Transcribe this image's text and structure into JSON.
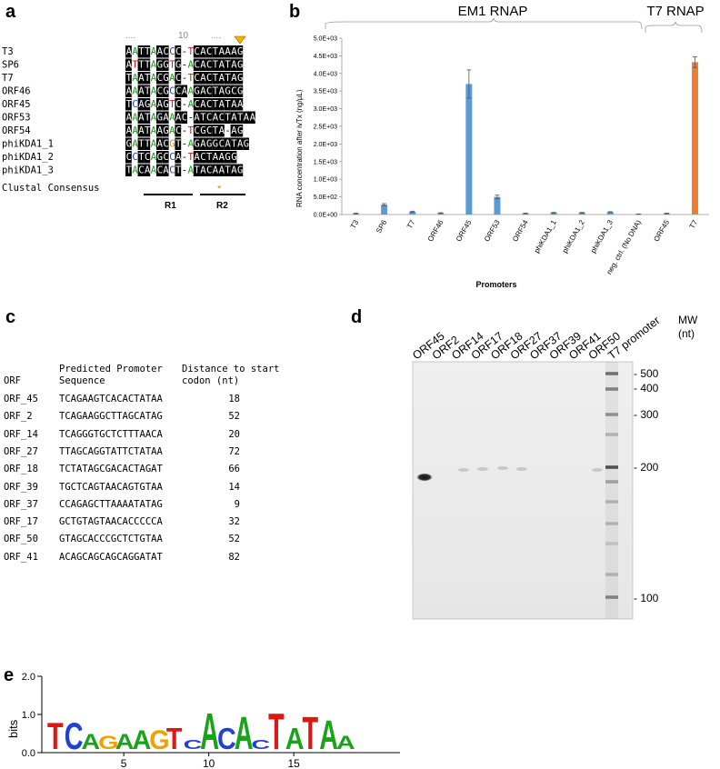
{
  "panels": {
    "a": "a",
    "b": "b",
    "c": "c",
    "d": "d",
    "e": "e"
  },
  "panel_a": {
    "ruler_dots_left": "....",
    "ruler_mark": "10",
    "ruler_dots_right": "....",
    "names": [
      "T3",
      "SP6",
      "T7",
      "ORF46",
      "ORF45",
      "ORF53",
      "ORF54",
      "phiKDA1_1",
      "phiKDA1_2",
      "phiKDA1_3"
    ],
    "sequences": [
      "AATTAACCC-TCACTAAAG",
      "ATTTAGGTG-ACACTATAG",
      "TAATACGAC-TCACTATAG",
      "AAATACGCCAAGACTAGCG",
      "TCAGAAGTC-ACACTATAA",
      "AAATAGAAAC-ATCACTATAA",
      "AAATAAGAC-TCGCTA-AG",
      "GATTAACGT-AGAGGCATAG",
      "CCTCAGCCA-TACTAAGG",
      "TACAACACT-ATACAATAG"
    ],
    "consensus_label": "Clustal Consensus",
    "consensus_mark": "*",
    "region_labels": [
      "R1",
      "R2"
    ]
  },
  "panel_b": {
    "group_labels": [
      "EM1 RNAP",
      "T7 RNAP"
    ],
    "chart_data": {
      "type": "bar",
      "categories": [
        "T3",
        "SP6",
        "T7",
        "ORF46",
        "ORF45",
        "ORF53",
        "ORF54",
        "phiKDA1_1",
        "phiKDA1_2",
        "phiKDA1_3",
        "neg. ctrl. (No DNA)",
        "ORF45",
        "T7"
      ],
      "values": [
        30,
        280,
        80,
        40,
        3700,
        500,
        30,
        50,
        50,
        70,
        10,
        30,
        4320
      ],
      "errors": [
        10,
        30,
        15,
        10,
        400,
        50,
        10,
        10,
        10,
        10,
        5,
        10,
        150
      ],
      "colors": [
        "#5b9bd5",
        "#5b9bd5",
        "#5b9bd5",
        "#5b9bd5",
        "#5b9bd5",
        "#5b9bd5",
        "#5b9bd5",
        "#5b9bd5",
        "#5b9bd5",
        "#5b9bd5",
        "#5b9bd5",
        "#ed7d31",
        "#ed7d31"
      ],
      "xlabel": "Promoters",
      "ylabel": "RNA concentration after ivTx (ng/µL)",
      "ylim": [
        0,
        5000
      ],
      "yticks": [
        "0.0E+00",
        "5.0E+02",
        "1.0E+03",
        "1.5E+03",
        "2.0E+03",
        "2.5E+03",
        "3.0E+03",
        "3.5E+03",
        "4.0E+03",
        "4.5E+03",
        "5.0E+03"
      ],
      "grid": false
    }
  },
  "panel_c": {
    "headers": {
      "col1": "ORF",
      "col2_line1": "Predicted Promoter",
      "col2_line2": "Sequence",
      "col3_line1": "Distance to start",
      "col3_line2": "codon (nt)"
    },
    "rows": [
      {
        "orf": "ORF_45",
        "seq": "TCAGAAGTCACACTATAA",
        "dist": "18"
      },
      {
        "orf": "ORF_2",
        "seq": "TCAGAAGGCTTAGCATAG",
        "dist": "52"
      },
      {
        "orf": "ORF_14",
        "seq": "TCAGGGTGCTCTTTAACA",
        "dist": "20"
      },
      {
        "orf": "ORF_27",
        "seq": "TTAGCAGGTATTCTATAA",
        "dist": "72"
      },
      {
        "orf": "ORF_18",
        "seq": "TCTATAGCGACACTAGAT",
        "dist": "66"
      },
      {
        "orf": "ORF_39",
        "seq": "TGCTCAGTAACAGTGTAA",
        "dist": "14"
      },
      {
        "orf": "ORF_37",
        "seq": "CCAGAGCTTAAAATATAG",
        "dist": "9"
      },
      {
        "orf": "ORF_17",
        "seq": "GCTGTAGTAACACCCCCA",
        "dist": "32"
      },
      {
        "orf": "ORF_50",
        "seq": "GTAGCACCCGCTCTGTAA",
        "dist": "52"
      },
      {
        "orf": "ORF_41",
        "seq": "ACAGCAGCAGCAGGATAT",
        "dist": "82"
      }
    ]
  },
  "panel_d": {
    "lane_labels": [
      "ORF45",
      "ORF2",
      "ORF14",
      "ORF17",
      "ORF18",
      "ORF27",
      "ORF37",
      "ORF39",
      "ORF41",
      "ORF50",
      "T7 promoter"
    ],
    "mw_title_line1": "MW",
    "mw_title_line2": "(nt)",
    "mw_markers": [
      "- 500",
      "- 400",
      "- 300",
      "- 200",
      "- 100"
    ]
  },
  "panel_e": {
    "ylabel": "bits",
    "yticks": [
      "2.0",
      "1.0",
      "0.0"
    ],
    "xticks": [
      "5",
      "10",
      "15"
    ],
    "logo_letters": [
      "T",
      "C",
      "A",
      "G",
      "A",
      "A",
      "G",
      "T",
      "C",
      "A",
      "C",
      "A",
      "C",
      "T",
      "A",
      "T",
      "A",
      "A"
    ]
  }
}
